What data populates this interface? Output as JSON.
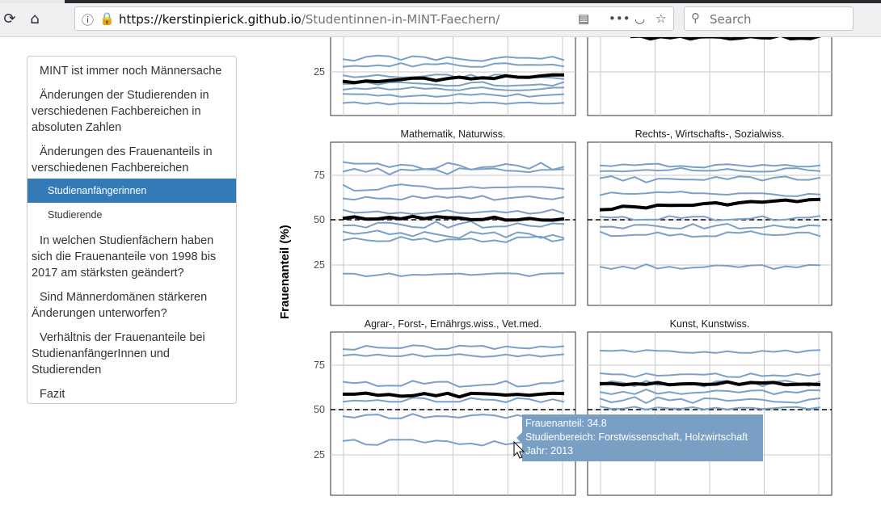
{
  "browser": {
    "url_host": "https://kerstinpierick.github.io",
    "url_path": "/Studentinnen-in-MINT-Faechern/",
    "search_placeholder": "Search"
  },
  "sidebar": {
    "items": [
      {
        "label": "MINT ist immer noch Männersache",
        "level": 1
      },
      {
        "label": "Änderungen der Studierenden in verschiedenen Fachbereichen in absoluten Zahlen",
        "level": 1
      },
      {
        "label": "Änderungen des Frauenanteils in verschiedenen Fachbereichen",
        "level": 1
      },
      {
        "label": "Studienanfängerinnen",
        "level": 2,
        "active": true
      },
      {
        "label": "Studierende",
        "level": 2
      },
      {
        "label": "In welchen Studienfächern haben sich die Frauenanteile von 1998 bis 2017 am stärksten geändert?",
        "level": 1
      },
      {
        "label": "Sind Männerdomänen stärkeren Änderungen unterworfen?",
        "level": 1
      },
      {
        "label": "Verhältnis der Frauenanteile bei StudienanfängerInnen und Studierenden",
        "level": 1
      },
      {
        "label": "Fazit",
        "level": 1
      }
    ]
  },
  "chart": {
    "ylabel": "Frauenanteil (%)",
    "panels": [
      {
        "title": "Mathematik, Naturwiss."
      },
      {
        "title": "Rechts-, Wirtschafts-, Sozialwiss."
      },
      {
        "title": "Agrar-, Forst-, Ernährgs.wiss., Vet.med."
      },
      {
        "title": "Kunst, Kunstwiss."
      }
    ],
    "ticks": [
      "25",
      "50",
      "75"
    ],
    "top_tick": "25"
  },
  "tooltip": {
    "line1": "Frauenanteil: 34.8",
    "line2": "Studienbereich: Forstwissenschaft, Holzwirtschaft",
    "line3": "Jahr: 2013"
  },
  "colors": {
    "series": "#7aa0c7",
    "mean": "#000000",
    "active_nav": "#337ab7"
  }
}
